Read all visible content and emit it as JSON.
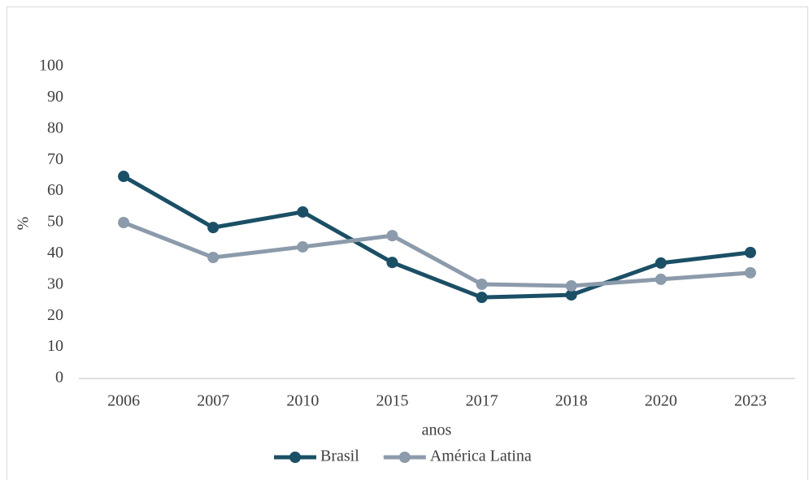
{
  "chart_data": {
    "type": "line",
    "categories": [
      "2006",
      "2007",
      "2010",
      "2015",
      "2017",
      "2018",
      "2020",
      "2023"
    ],
    "series": [
      {
        "name": "Brasil",
        "color": "#1b4f66",
        "values": [
          64.8,
          48.4,
          53.4,
          37.2,
          26,
          26.8,
          37,
          40.4
        ]
      },
      {
        "name": "América Latina",
        "color": "#8c9bab",
        "values": [
          50,
          38.8,
          42.2,
          45.8,
          30.2,
          29.7,
          31.8,
          33.9
        ]
      }
    ],
    "ylabel": "%",
    "xlabel": "anos",
    "ylim": [
      0,
      100
    ],
    "yticks": [
      0,
      10,
      20,
      30,
      40,
      50,
      60,
      70,
      80,
      90,
      100
    ],
    "grid": false,
    "legend": "bottom"
  }
}
